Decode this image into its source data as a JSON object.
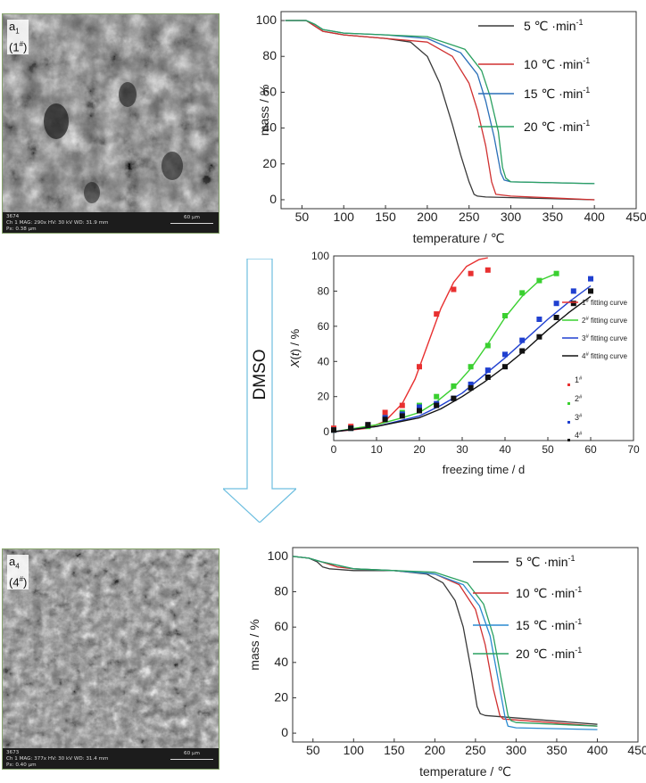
{
  "sem_images": [
    {
      "label_main": "a",
      "label_sub": "1",
      "label_sample": "1",
      "label_sample_sup": "#",
      "info_line1": "3674",
      "info_line2": "Ch 1   MAG: 290x   HV: 30 kV   WD: 31.9 mm",
      "info_line3": "Px: 0.38 μm",
      "scale": "60 μm"
    },
    {
      "label_main": "a",
      "label_sub": "4",
      "label_sample": "4",
      "label_sample_sup": "#",
      "info_line1": "3673",
      "info_line2": "Ch 1   MAG: 377x   HV: 30 kV   WD: 31.4 mm",
      "info_line3": "Px: 0.40 μm",
      "scale": "60 μm"
    }
  ],
  "arrow": {
    "label": "DMSO",
    "fill": "#ffffff",
    "stroke": "#6fbfe0"
  },
  "chart_data": [
    {
      "type": "line",
      "xlabel": "temperature / ℃",
      "ylabel": "mass / %",
      "xlim": [
        25,
        450
      ],
      "ylim": [
        -5,
        105
      ],
      "xticks": [
        50,
        100,
        150,
        200,
        250,
        300,
        350,
        400,
        450
      ],
      "yticks": [
        0,
        20,
        40,
        60,
        80,
        100
      ],
      "legend_position": "top-right",
      "series": [
        {
          "name": "5 ℃·min⁻¹",
          "rate": "5",
          "color": "#3a3a3a",
          "x": [
            30,
            55,
            65,
            75,
            100,
            150,
            180,
            200,
            215,
            230,
            240,
            250,
            256,
            260,
            270,
            400
          ],
          "y": [
            100,
            100,
            97,
            94,
            92,
            90,
            88,
            80,
            65,
            42,
            25,
            10,
            3,
            2,
            1.5,
            0
          ]
        },
        {
          "name": "10 ℃·min⁻¹",
          "rate": "10",
          "color": "#d03030",
          "x": [
            30,
            55,
            65,
            75,
            100,
            150,
            200,
            230,
            250,
            260,
            270,
            277,
            282,
            300,
            400
          ],
          "y": [
            100,
            100,
            97,
            94,
            92,
            90,
            88,
            80,
            65,
            50,
            30,
            10,
            3,
            2,
            0
          ]
        },
        {
          "name": "15 ℃·min⁻¹",
          "rate": "15",
          "color": "#2a6fb8",
          "x": [
            30,
            55,
            65,
            75,
            100,
            150,
            200,
            240,
            260,
            270,
            280,
            288,
            292,
            300,
            400
          ],
          "y": [
            100,
            100,
            98,
            95,
            93,
            92,
            90,
            82,
            70,
            55,
            35,
            15,
            11,
            10,
            9
          ]
        },
        {
          "name": "20 ℃·min⁻¹",
          "rate": "20",
          "color": "#2aa060",
          "x": [
            30,
            55,
            65,
            75,
            100,
            150,
            200,
            245,
            265,
            275,
            285,
            290,
            294,
            300,
            400
          ],
          "y": [
            100,
            100,
            98,
            95,
            93,
            92,
            91,
            84,
            72,
            58,
            38,
            18,
            12,
            10,
            9
          ]
        }
      ]
    },
    {
      "type": "scatter",
      "xlabel": "freezing time / d",
      "ylabel": "X(t) / %",
      "xlim": [
        0,
        70
      ],
      "ylim": [
        -5,
        100
      ],
      "xticks": [
        0,
        10,
        20,
        30,
        40,
        50,
        60,
        70
      ],
      "yticks": [
        0,
        20,
        40,
        60,
        80,
        100
      ],
      "legend_position": "right",
      "series": [
        {
          "name": "1#",
          "fit_name": "1# fitting curve",
          "sample": "1",
          "color": "#e83030",
          "x": [
            0,
            4,
            8,
            12,
            16,
            20,
            24,
            28,
            32,
            36
          ],
          "y": [
            2,
            3,
            4,
            11,
            15,
            37,
            67,
            81,
            90,
            92
          ],
          "fit_x": [
            0,
            8,
            12,
            16,
            19,
            22,
            25,
            28,
            31,
            34,
            36
          ],
          "fit_y": [
            0,
            2,
            6,
            16,
            30,
            50,
            70,
            85,
            94,
            98,
            99
          ]
        },
        {
          "name": "2#",
          "fit_name": "2# fitting curve",
          "sample": "2",
          "color": "#3ad030",
          "x": [
            0,
            4,
            8,
            12,
            16,
            20,
            24,
            28,
            32,
            36,
            40,
            44,
            48,
            52
          ],
          "y": [
            1,
            2,
            3,
            8,
            11,
            15,
            20,
            26,
            37,
            49,
            66,
            79,
            86,
            90
          ],
          "fit_x": [
            0,
            10,
            16,
            20,
            24,
            28,
            32,
            36,
            40,
            44,
            48,
            52
          ],
          "fit_y": [
            0,
            4,
            8,
            11,
            17,
            25,
            36,
            50,
            65,
            77,
            86,
            90
          ]
        },
        {
          "name": "3#",
          "fit_name": "3# fitting curve",
          "sample": "3",
          "color": "#2040d0",
          "x": [
            0,
            4,
            8,
            12,
            16,
            20,
            24,
            28,
            32,
            36,
            40,
            44,
            48,
            52,
            56,
            60
          ],
          "y": [
            1,
            2,
            4,
            8,
            10,
            14,
            16,
            19,
            27,
            35,
            44,
            52,
            64,
            73,
            80,
            87
          ],
          "fit_x": [
            0,
            10,
            20,
            25,
            30,
            35,
            40,
            45,
            50,
            55,
            60
          ],
          "fit_y": [
            0,
            3,
            9,
            15,
            22,
            32,
            42,
            53,
            64,
            74,
            83
          ]
        },
        {
          "name": "4#",
          "fit_name": "4# fitting curve",
          "sample": "4",
          "color": "#111111",
          "x": [
            0,
            4,
            8,
            12,
            16,
            20,
            24,
            28,
            32,
            36,
            40,
            44,
            48,
            52,
            56,
            60
          ],
          "y": [
            1,
            2,
            4,
            7,
            9,
            12,
            15,
            19,
            25,
            31,
            37,
            46,
            54,
            65,
            73,
            80
          ],
          "fit_x": [
            0,
            10,
            20,
            25,
            30,
            35,
            40,
            45,
            50,
            55,
            60
          ],
          "fit_y": [
            0,
            3,
            8,
            13,
            20,
            28,
            37,
            47,
            58,
            68,
            77
          ]
        }
      ]
    },
    {
      "type": "line",
      "xlabel": "temperature / ℃",
      "ylabel": "mass / %",
      "xlim": [
        25,
        450
      ],
      "ylim": [
        -5,
        105
      ],
      "xticks": [
        50,
        100,
        150,
        200,
        250,
        300,
        350,
        400,
        450
      ],
      "yticks": [
        0,
        20,
        40,
        60,
        80,
        100
      ],
      "legend_position": "top-right",
      "series": [
        {
          "name": "5 ℃·min⁻¹",
          "rate": "5",
          "color": "#3a3a3a",
          "x": [
            25,
            45,
            55,
            62,
            70,
            100,
            150,
            190,
            210,
            225,
            235,
            245,
            252,
            256,
            262,
            400
          ],
          "y": [
            100,
            99,
            97,
            94,
            93,
            92,
            92,
            90,
            85,
            75,
            60,
            35,
            15,
            11,
            10,
            5
          ]
        },
        {
          "name": "10 ℃·min⁻¹",
          "rate": "10",
          "color": "#d03030",
          "x": [
            25,
            45,
            60,
            80,
            100,
            150,
            200,
            230,
            250,
            262,
            272,
            280,
            284,
            400
          ],
          "y": [
            100,
            99,
            97,
            94,
            93,
            92,
            90,
            84,
            70,
            50,
            25,
            10,
            8,
            4
          ]
        },
        {
          "name": "15 ℃·min⁻¹",
          "rate": "15",
          "color": "#2a8ad0",
          "x": [
            25,
            45,
            60,
            80,
            100,
            150,
            200,
            235,
            255,
            268,
            278,
            286,
            290,
            300,
            400
          ],
          "y": [
            100,
            99,
            97,
            95,
            93,
            92,
            90,
            84,
            72,
            55,
            30,
            10,
            4,
            3,
            2
          ]
        },
        {
          "name": "20 ℃·min⁻¹",
          "rate": "20",
          "color": "#2aa060",
          "x": [
            25,
            45,
            60,
            80,
            100,
            150,
            200,
            240,
            260,
            272,
            282,
            290,
            294,
            300,
            400
          ],
          "y": [
            100,
            99,
            97,
            95,
            93,
            92,
            91,
            85,
            73,
            55,
            30,
            10,
            7,
            6,
            4
          ]
        }
      ]
    }
  ]
}
